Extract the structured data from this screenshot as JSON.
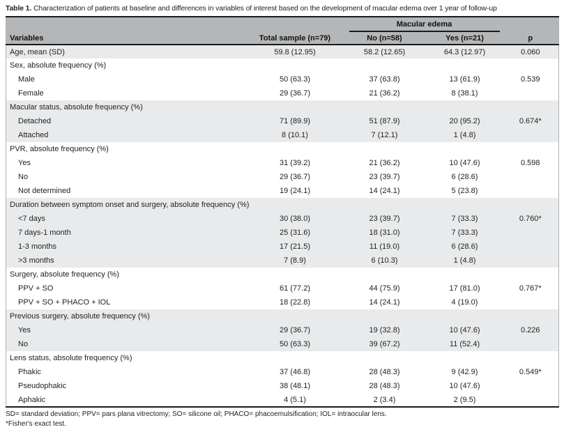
{
  "colors": {
    "header_bg": "#b4b6b8",
    "shaded_row": "#e9eaeb",
    "border_dark": "#1a1a1a",
    "edge_gray": "#b0b2b4"
  },
  "table": {
    "title_label": "Table 1.",
    "title_text": "Characterization of patients at baseline and differences in variables of interest based on the development of macular edema over 1 year of follow-up",
    "header": {
      "variables": "Variables",
      "total": "Total sample (n=79)",
      "group": "Macular edema",
      "no": "No (n=58)",
      "yes": "Yes (n=21)",
      "p": "p"
    },
    "rows": [
      {
        "label": "Age, mean (SD)",
        "indent": false,
        "shaded": true,
        "total": "59.8 (12.95)",
        "no": "58.2 (12.65)",
        "yes": "64.3 (12.97)",
        "p": "0.060"
      },
      {
        "label": "Sex, absolute frequency (%)",
        "indent": false,
        "shaded": false,
        "total": "",
        "no": "",
        "yes": "",
        "p": ""
      },
      {
        "label": "Male",
        "indent": true,
        "shaded": false,
        "total": "50 (63.3)",
        "no": "37 (63.8)",
        "yes": "13 (61.9)",
        "p": "0.539"
      },
      {
        "label": "Female",
        "indent": true,
        "shaded": false,
        "total": "29 (36.7)",
        "no": "21 (36.2)",
        "yes": "8 (38.1)",
        "p": ""
      },
      {
        "label": "Macular status, absolute frequency (%)",
        "indent": false,
        "shaded": true,
        "total": "",
        "no": "",
        "yes": "",
        "p": ""
      },
      {
        "label": "Detached",
        "indent": true,
        "shaded": true,
        "total": "71 (89.9)",
        "no": "51 (87.9)",
        "yes": "20 (95.2)",
        "p": "0.674*"
      },
      {
        "label": "Attached",
        "indent": true,
        "shaded": true,
        "total": "8 (10.1)",
        "no": "7 (12.1)",
        "yes": "1 (4.8)",
        "p": ""
      },
      {
        "label": "PVR, absolute frequency (%)",
        "indent": false,
        "shaded": false,
        "total": "",
        "no": "",
        "yes": "",
        "p": ""
      },
      {
        "label": "Yes",
        "indent": true,
        "shaded": false,
        "total": "31 (39.2)",
        "no": "21 (36.2)",
        "yes": "10 (47.6)",
        "p": "0.598"
      },
      {
        "label": "No",
        "indent": true,
        "shaded": false,
        "total": "29 (36.7)",
        "no": "23 (39.7)",
        "yes": "6 (28.6)",
        "p": ""
      },
      {
        "label": "Not determined",
        "indent": true,
        "shaded": false,
        "total": "19 (24.1)",
        "no": "14 (24.1)",
        "yes": "5 (23.8)",
        "p": ""
      },
      {
        "label": "Duration between symptom onset and surgery, absolute frequency (%)",
        "indent": false,
        "shaded": true,
        "total": "",
        "no": "",
        "yes": "",
        "p": ""
      },
      {
        "label": "<7 days",
        "indent": true,
        "shaded": true,
        "total": "30 (38.0)",
        "no": "23 (39.7)",
        "yes": "7 (33.3)",
        "p": "0.760*"
      },
      {
        "label": "7 days-1 month",
        "indent": true,
        "shaded": true,
        "total": "25 (31.6)",
        "no": "18 (31.0)",
        "yes": "7 (33.3)",
        "p": ""
      },
      {
        "label": "1-3 months",
        "indent": true,
        "shaded": true,
        "total": "17 (21.5)",
        "no": "11 (19.0)",
        "yes": "6 (28.6)",
        "p": ""
      },
      {
        "label": ">3 months",
        "indent": true,
        "shaded": true,
        "total": "7 (8.9)",
        "no": "6 (10.3)",
        "yes": "1 (4.8)",
        "p": ""
      },
      {
        "label": "Surgery, absolute frequency (%)",
        "indent": false,
        "shaded": false,
        "total": "",
        "no": "",
        "yes": "",
        "p": ""
      },
      {
        "label": "PPV + SO",
        "indent": true,
        "shaded": false,
        "total": "61 (77.2)",
        "no": "44 (75.9)",
        "yes": "17 (81.0)",
        "p": "0.767*"
      },
      {
        "label": "PPV + SO + PHACO + IOL",
        "indent": true,
        "shaded": false,
        "total": "18 (22.8)",
        "no": "14 (24.1)",
        "yes": "4 (19.0)",
        "p": ""
      },
      {
        "label": "Previous surgery, absolute frequency (%)",
        "indent": false,
        "shaded": true,
        "total": "",
        "no": "",
        "yes": "",
        "p": ""
      },
      {
        "label": "Yes",
        "indent": true,
        "shaded": true,
        "total": "29 (36.7)",
        "no": "19 (32.8)",
        "yes": "10 (47.6)",
        "p": "0.226"
      },
      {
        "label": "No",
        "indent": true,
        "shaded": true,
        "total": "50 (63.3)",
        "no": "39 (67.2)",
        "yes": "11 (52.4)",
        "p": ""
      },
      {
        "label": "Lens status, absolute frequency (%)",
        "indent": false,
        "shaded": false,
        "total": "",
        "no": "",
        "yes": "",
        "p": ""
      },
      {
        "label": "Phakic",
        "indent": true,
        "shaded": false,
        "total": "37 (46.8)",
        "no": "28 (48.3)",
        "yes": "9 (42.9)",
        "p": "0.549*"
      },
      {
        "label": "Pseudophakic",
        "indent": true,
        "shaded": false,
        "total": "38 (48.1)",
        "no": "28 (48.3)",
        "yes": "10 (47.6)",
        "p": ""
      },
      {
        "label": "Aphakic",
        "indent": true,
        "shaded": false,
        "total": "4 (5.1)",
        "no": "2 (3.4)",
        "yes": "2 (9.5)",
        "p": ""
      }
    ],
    "footnotes": [
      "SD= standard deviation; PPV= pars plana vitrectomy; SO= silicone oil; PHACO= phacoemulsification; IOL= intraocular lens.",
      "*Fisher's exact test."
    ]
  }
}
